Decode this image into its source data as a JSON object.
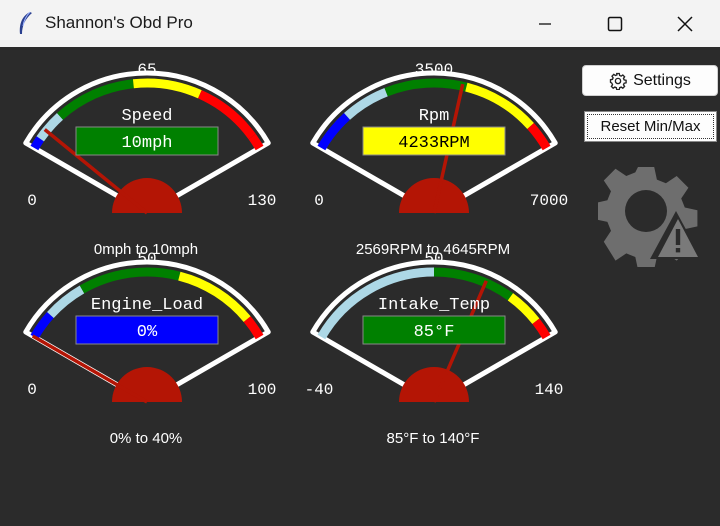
{
  "window": {
    "title": "Shannon's Obd Pro",
    "app_icon": "feather-icon"
  },
  "buttons": {
    "settings_label": "Settings",
    "reset_label": "Reset Min/Max"
  },
  "status_icon": "gear-warning-icon",
  "gauges": [
    {
      "id": "speed",
      "label": "Speed",
      "min_label": "0",
      "mid_label": "65",
      "max_label": "130",
      "min": 0,
      "max": 130,
      "value": 10,
      "value_text": "10mph",
      "value_box_color": "#008000",
      "value_text_color": "#ffffff",
      "range_text": "0mph  to 10mph",
      "minmax_marker": [
        0,
        10
      ],
      "bands": [
        {
          "to": 0.04,
          "color": "#0000ff"
        },
        {
          "to": 0.15,
          "color": "#add8e6"
        },
        {
          "to": 0.45,
          "color": "#008000"
        },
        {
          "to": 0.7,
          "color": "#ffff00"
        },
        {
          "to": 0.95,
          "color": "#ff0000"
        },
        {
          "to": 1.0,
          "color": "#ff0000"
        }
      ]
    },
    {
      "id": "rpm",
      "label": "Rpm",
      "min_label": "0",
      "mid_label": "3500",
      "max_label": "7000",
      "min": 0,
      "max": 7000,
      "value": 4233,
      "value_text": "4233RPM",
      "value_box_color": "#ffff00",
      "value_text_color": "#000000",
      "range_text": "2569RPM  to 4645RPM",
      "minmax_marker": [
        2569,
        4645
      ],
      "bands": [
        {
          "to": 0.15,
          "color": "#0000ff"
        },
        {
          "to": 0.32,
          "color": "#add8e6"
        },
        {
          "to": 0.62,
          "color": "#008000"
        },
        {
          "to": 0.9,
          "color": "#ffff00"
        },
        {
          "to": 1.0,
          "color": "#ff0000"
        }
      ]
    },
    {
      "id": "engine_load",
      "label": "Engine_Load",
      "min_label": "0",
      "mid_label": "50",
      "max_label": "100",
      "min": 0,
      "max": 100,
      "value": 0,
      "value_text": "0%",
      "value_box_color": "#0000ff",
      "value_text_color": "#ffffff",
      "range_text": "0%  to 40%",
      "minmax_marker": [
        0,
        40
      ],
      "bands": [
        {
          "to": 0.1,
          "color": "#0000ff"
        },
        {
          "to": 0.25,
          "color": "#add8e6"
        },
        {
          "to": 0.62,
          "color": "#008000"
        },
        {
          "to": 0.92,
          "color": "#ffff00"
        },
        {
          "to": 1.0,
          "color": "#ff0000"
        }
      ]
    },
    {
      "id": "intake_temp",
      "label": "Intake_Temp",
      "min_label": "-40",
      "mid_label": "50",
      "max_label": "140",
      "min": -40,
      "max": 140,
      "value": 85,
      "value_text": "85°F",
      "value_box_color": "#008000",
      "value_text_color": "#ffffff",
      "range_text": "85°F  to 140°F",
      "minmax_marker": [
        85,
        140
      ],
      "bands": [
        {
          "to": 0.5,
          "color": "#add8e6"
        },
        {
          "to": 0.8,
          "color": "#008000"
        },
        {
          "to": 0.93,
          "color": "#ffff00"
        },
        {
          "to": 1.0,
          "color": "#ff0000"
        }
      ]
    }
  ]
}
